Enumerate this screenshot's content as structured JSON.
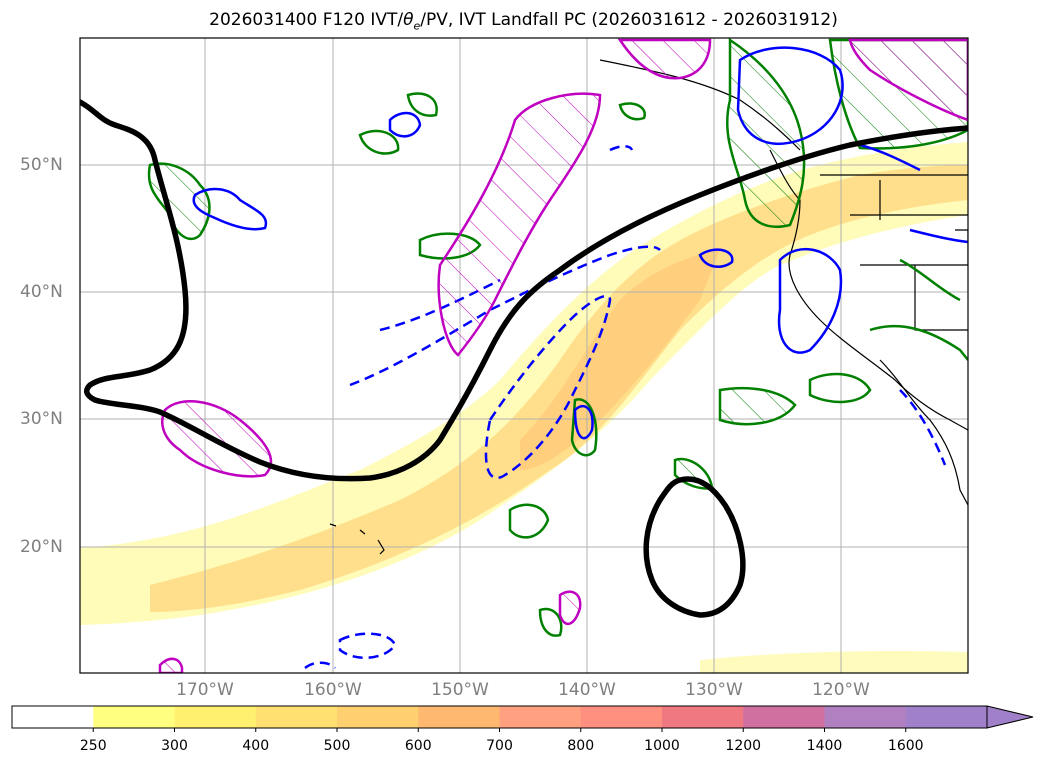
{
  "title_parts": {
    "prefix": "2026031400 F120 IVT/",
    "theta": "θ",
    "theta_sub": "e",
    "suffix": "/PV, IVT Landfall PC (2026031612 - 2026031912)"
  },
  "map": {
    "latitude_labels": [
      "50°N",
      "40°N",
      "30°N",
      "20°N"
    ],
    "longitude_labels": [
      "170°W",
      "160°W",
      "150°W",
      "140°W",
      "130°W",
      "120°W"
    ],
    "gridlines": true,
    "contour_colors": {
      "ivt_landfall_pc": "#000000",
      "theta_e": "#008000",
      "pv_positive": "#0000ff",
      "pv_hatched": "#c000c0"
    }
  },
  "colorbar": {
    "ticks": [
      "250",
      "300",
      "400",
      "500",
      "600",
      "700",
      "800",
      "1000",
      "1200",
      "1400",
      "1600"
    ],
    "colors": [
      "#ffffff",
      "#ffff80",
      "#fff070",
      "#ffe070",
      "#ffd070",
      "#ffb870",
      "#ffa080",
      "#ff9080",
      "#f07880",
      "#d070a0",
      "#b080c0",
      "#a080c8"
    ],
    "extend": "max"
  }
}
